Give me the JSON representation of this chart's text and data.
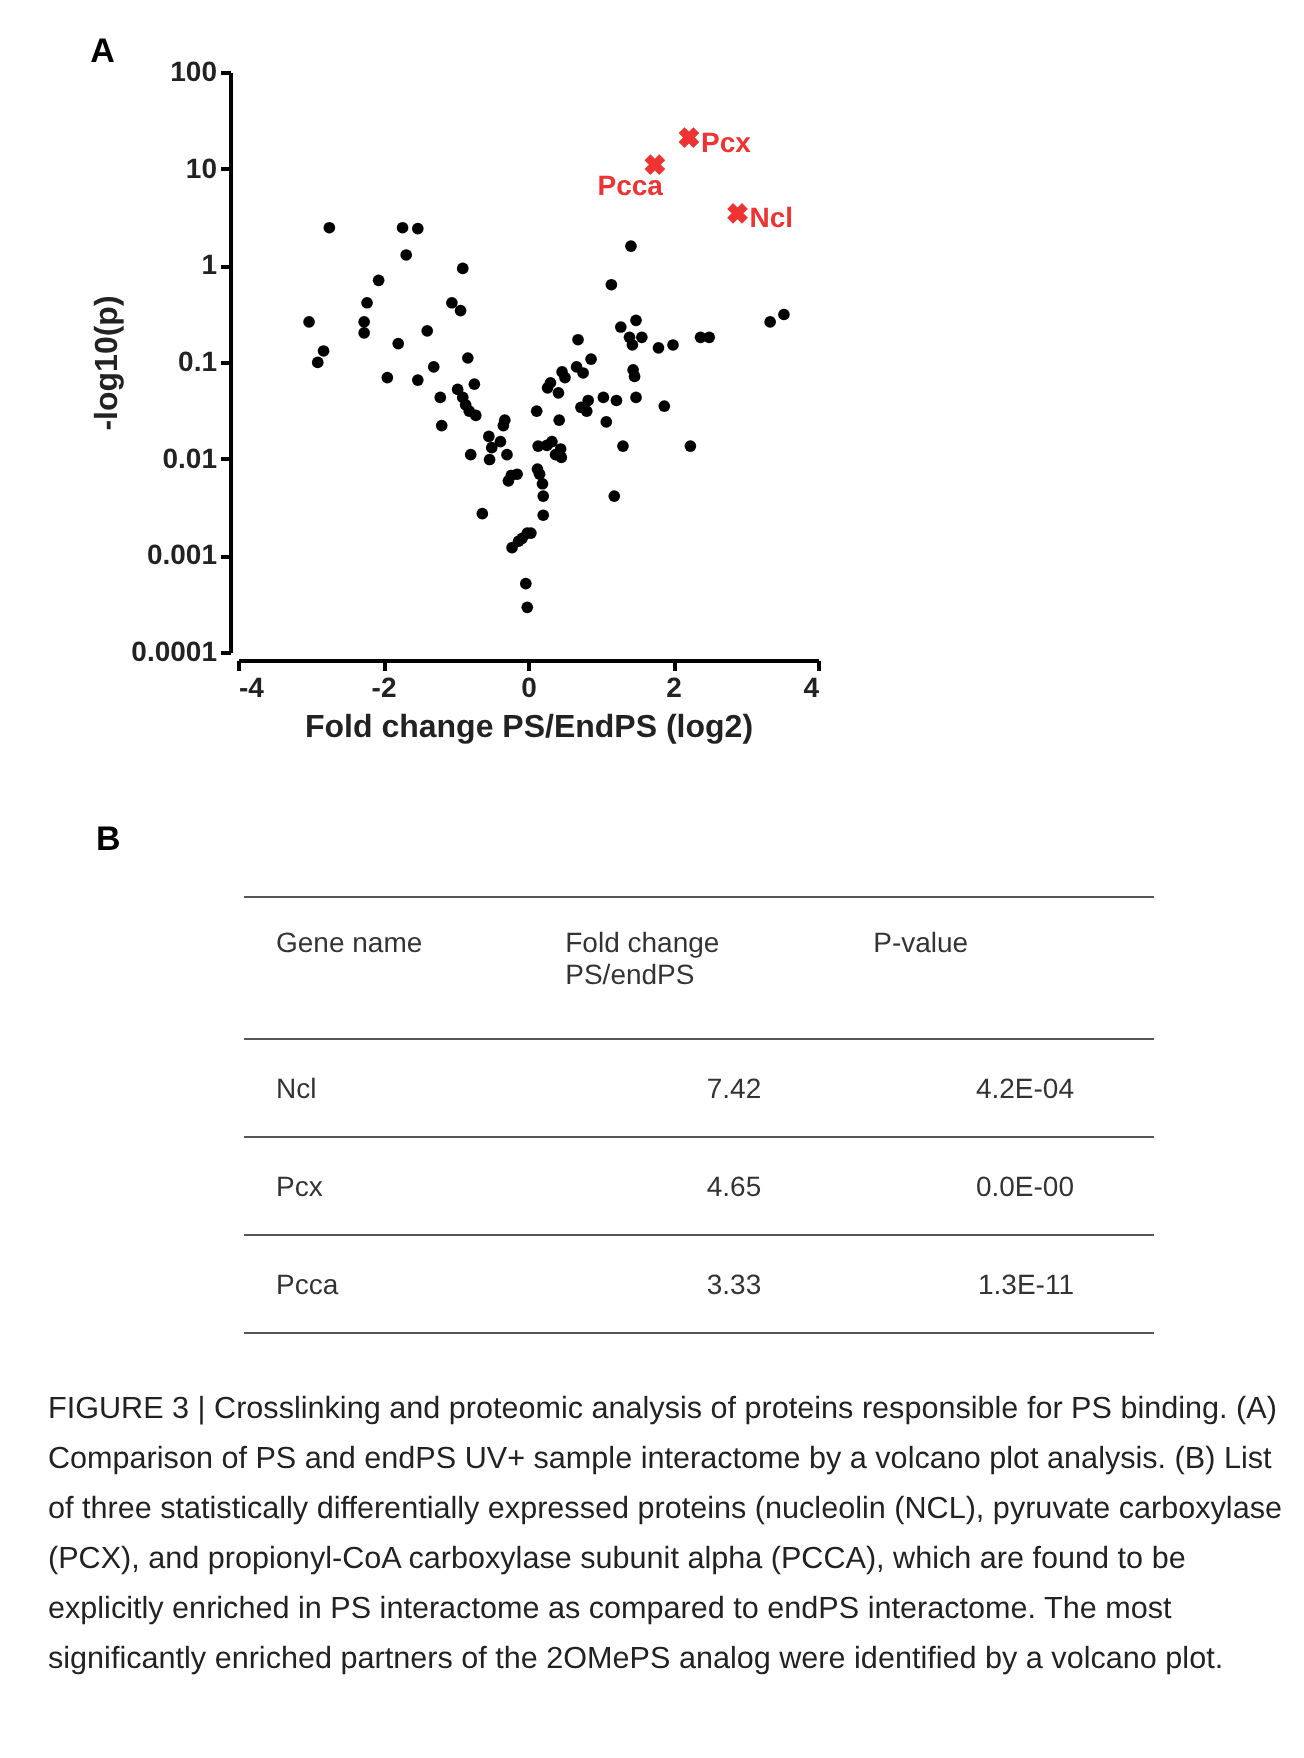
{
  "chart_data": [
    {
      "type": "scatter",
      "title": "A",
      "xlabel": "Fold change PS/EndPS (log2)",
      "ylabel": "-log10(p)",
      "log": "y",
      "xlim": [
        -4,
        4
      ],
      "xticks": [
        -4,
        -2,
        0,
        2,
        4
      ],
      "ylim": [
        0.0001,
        100
      ],
      "yticks": [
        0.0001,
        0.001,
        0.01,
        0.1,
        1,
        10,
        100
      ],
      "grid": false,
      "series": [
        {
          "color": "#000000",
          "marker": "circle",
          "x": [
            -3.02,
            -2.82,
            -2.9,
            -2.74,
            -2.26,
            -2.26,
            -2.22,
            -2.06,
            -1.94,
            -1.79,
            -1.73,
            -1.68,
            -1.52,
            -1.52,
            -1.39,
            -1.3,
            -1.21,
            -1.19,
            -1.05,
            -0.97,
            -0.93,
            -0.9,
            -0.9,
            -0.86,
            -0.83,
            -0.81,
            -0.74,
            -0.79,
            -0.72,
            -0.63,
            -0.54,
            -0.53,
            -0.5,
            -0.38,
            -0.34,
            -0.32,
            -0.29,
            -0.27,
            -0.23,
            -0.15,
            -0.22,
            -0.13,
            -0.08,
            -0.01,
            0.04,
            -0.03,
            -0.01,
            0.12,
            0.14,
            0.13,
            0.16,
            0.2,
            0.21,
            0.21,
            0.26,
            0.27,
            0.31,
            0.33,
            0.38,
            0.42,
            0.43,
            0.45,
            0.46,
            0.47,
            0.51,
            0.67,
            0.69,
            0.73,
            0.76,
            0.81,
            0.83,
            0.87,
            1.04,
            1.08,
            1.15,
            1.19,
            1.22,
            1.28,
            1.31,
            1.42,
            1.4,
            1.44,
            1.45,
            1.47,
            1.49,
            1.49,
            1.57,
            1.8,
            1.88,
            2.0,
            2.24,
            2.38,
            2.5,
            3.34,
            3.53
          ],
          "values": [
            0.26,
            0.13,
            0.099,
            2.45,
            0.2,
            0.26,
            0.41,
            0.7,
            0.069,
            0.155,
            2.45,
            1.28,
            2.4,
            0.065,
            0.21,
            0.089,
            0.043,
            0.022,
            0.41,
            0.052,
            0.34,
            0.93,
            0.043,
            0.036,
            0.11,
            0.031,
            0.059,
            0.011,
            0.028,
            0.0027,
            0.017,
            0.0098,
            0.013,
            0.015,
            0.022,
            0.025,
            0.011,
            0.0059,
            0.0067,
            0.0069,
            0.0012,
            0.0014,
            0.0015,
            0.0017,
            0.0017,
            0.00051,
            0.00029,
            0.031,
            0.0135,
            0.0078,
            0.0069,
            0.0055,
            0.0041,
            0.0026,
            0.0137,
            0.054,
            0.061,
            0.015,
            0.011,
            0.048,
            0.025,
            0.0126,
            0.0103,
            0.079,
            0.069,
            0.089,
            0.17,
            0.034,
            0.077,
            0.031,
            0.04,
            0.107,
            0.043,
            0.024,
            0.63,
            0.0041,
            0.04,
            0.23,
            0.0135,
            1.58,
            0.18,
            0.15,
            0.083,
            0.071,
            0.27,
            0.043,
            0.18,
            0.14,
            0.035,
            0.15,
            0.0135,
            0.18,
            0.18,
            0.26,
            0.31
          ]
        },
        {
          "color": "#ee3333",
          "marker": "cross",
          "x": [
            2.89,
            2.22,
            1.75
          ],
          "values": [
            3.45,
            21,
            11
          ]
        }
      ],
      "annotations": [
        {
          "text": "Ncl",
          "x": 2.89,
          "y": 3.45
        },
        {
          "text": "Pcx",
          "x": 2.22,
          "y": 21
        },
        {
          "text": "Pcca",
          "x": 1.75,
          "y": 11
        }
      ]
    },
    {
      "type": "other",
      "title": "B",
      "categories": [
        "Gene name",
        "Fold change PS/endPS",
        "P-value"
      ],
      "cell_labels": [
        [
          "Ncl",
          "7.42",
          "4.2E-04"
        ],
        [
          "Pcx",
          "4.65",
          "0.0E-00"
        ],
        [
          "Pcca",
          "3.33",
          "1.3E-11"
        ]
      ],
      "annotations": [
        "FIGURE 3 | Crosslinking and proteomic analysis of proteins responsible for PS binding. (A) Comparison of PS and endPS UV+ sample interactome by a volcano plot analysis. (B) List of three statistically differentially expressed proteins (nucleolin (NCL), pyruvate carboxylase (PCX), and propionyl-CoA carboxylase subunit alpha (PCCA), which are found to be explicitly enriched in PS interactome as compared to endPS interactome. The most significantly enriched partners of the 2OMePS analog were identified by a volcano plot."
      ]
    }
  ]
}
